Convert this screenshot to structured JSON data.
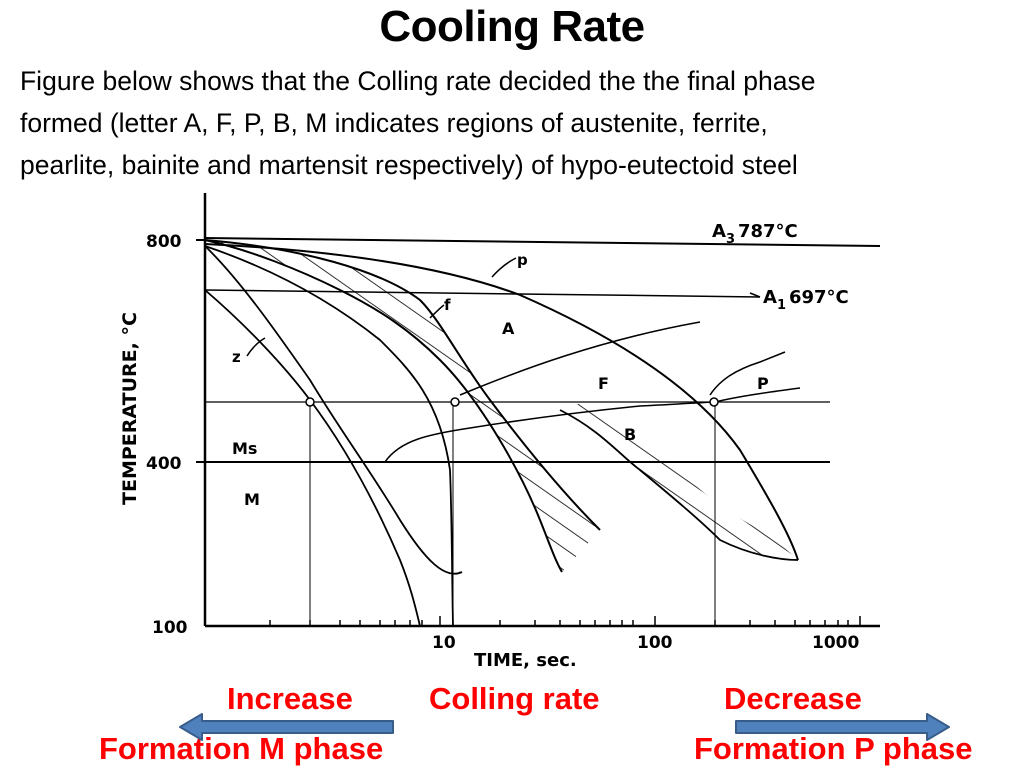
{
  "slide": {
    "title": "Cooling Rate",
    "intro_lines": [
      "Figure below shows that  the  Colling rate decided the the final phase",
      "formed (letter A, F, P, B, M indicates regions of austenite, ferrite,",
      "pearlite, bainite and martensit respectively) of hypo-eutectoid steel"
    ]
  },
  "diagram": {
    "y_axis_title": "TEMPERATURE, °C",
    "x_axis_title": "TIME, sec.",
    "y_ticks": [
      "800",
      "400",
      "100"
    ],
    "x_ticks": [
      "10",
      "100",
      "1000"
    ],
    "a3_label": "A",
    "a3_sub": "3",
    "a3_value": "787°C",
    "a1_label": "A",
    "a1_sub": "1",
    "a1_value": "697°C",
    "ms_label": "Ms",
    "regions": {
      "m": "M",
      "a": "A",
      "f": "F",
      "p": "P",
      "b": "B"
    },
    "curve_labels": {
      "p": "p",
      "f": "f",
      "z": "z"
    }
  },
  "annotations": {
    "increase": "Increase",
    "colling_rate": "Colling rate",
    "decrease": "Decrease",
    "formation_m": "Formation M  phase",
    "formation_p": "Formation P  phase",
    "text_color": "#ff0000",
    "arrow_color": "#4f81bd",
    "arrow_border": "#385d8a"
  }
}
